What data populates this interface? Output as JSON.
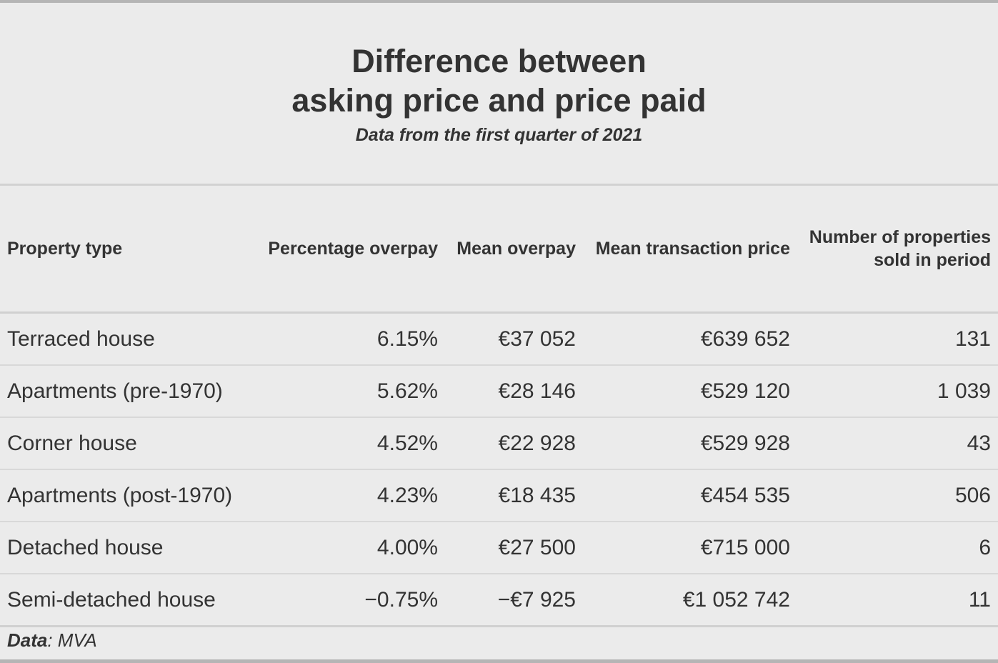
{
  "chart_data": {
    "type": "table",
    "title_line1": "Difference between",
    "title_line2": "asking price and price paid",
    "subtitle": "Data from the first quarter of 2021",
    "columns": [
      "Property type",
      "Percentage overpay",
      "Mean overpay",
      "Mean transaction price",
      "Number of properties sold in period"
    ],
    "header_lines": {
      "count_line1": "Number of properties",
      "count_line2": "sold in period"
    },
    "rows": [
      [
        "Terraced house",
        "6.15%",
        "€37 052",
        "€639 652",
        "131"
      ],
      [
        "Apartments (pre-1970)",
        "5.62%",
        "€28 146",
        "€529 120",
        "1 039"
      ],
      [
        "Corner house",
        "4.52%",
        "€22 928",
        "€529 928",
        "43"
      ],
      [
        "Apartments (post-1970)",
        "4.23%",
        "€18 435",
        "€454 535",
        "506"
      ],
      [
        "Detached house",
        "4.00%",
        "€27 500",
        "€715 000",
        "6"
      ],
      [
        "Semi-detached house",
        "−0.75%",
        "−€7 925",
        "€1 052 742",
        "11"
      ]
    ],
    "source_label": "Data",
    "source_text": ": MVA"
  }
}
